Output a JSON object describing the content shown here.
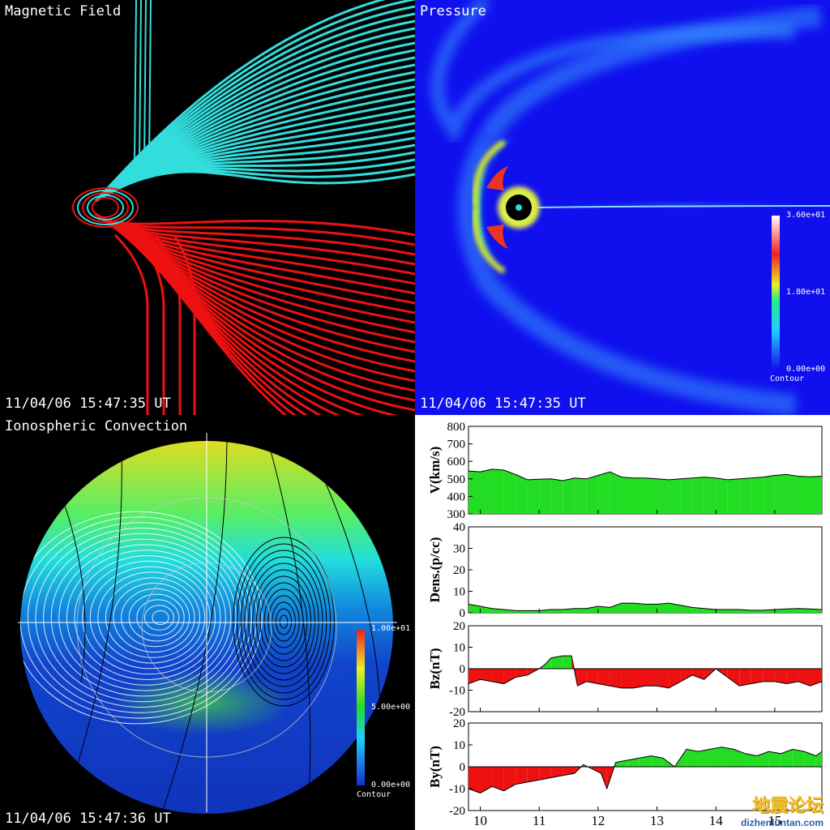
{
  "panels": {
    "magnetic": {
      "title": "Magnetic Field",
      "timestamp": "11/04/06 15:47:35 UT"
    },
    "pressure": {
      "title": "Pressure",
      "timestamp": "11/04/06 15:47:35 UT",
      "colorbar": {
        "max": "3.60e+01",
        "mid": "1.80e+01",
        "min": "0.00e+00",
        "label": "Contour"
      }
    },
    "ionosphere": {
      "title": "Ionospheric Convection",
      "timestamp": "11/04/06 15:47:36 UT",
      "colorbar": {
        "max": "1.00e+01",
        "mid": "5.00e+00",
        "min": "0.00e+00",
        "label": "Contour"
      }
    }
  },
  "watermark": {
    "cn": "地震论坛",
    "url": "dizhenluntan.com"
  },
  "colors": {
    "positive": "#22dd22",
    "negative": "#ee1111",
    "cyan": "#33dddd",
    "red": "#ee1111"
  },
  "chart_data": [
    {
      "type": "area",
      "ylabel": "V(km/s)",
      "ylim": [
        300,
        800
      ],
      "yticks": [
        "800",
        "700",
        "600",
        "500",
        "400",
        "300"
      ],
      "x": [
        9.8,
        10.0,
        10.2,
        10.4,
        10.6,
        10.8,
        11.0,
        11.2,
        11.4,
        11.6,
        11.8,
        12.0,
        12.2,
        12.4,
        12.6,
        12.8,
        13.0,
        13.2,
        13.4,
        13.6,
        13.8,
        14.0,
        14.2,
        14.4,
        14.6,
        14.8,
        15.0,
        15.2,
        15.4,
        15.6,
        15.8
      ],
      "values": [
        545,
        540,
        555,
        550,
        525,
        495,
        498,
        500,
        490,
        505,
        500,
        520,
        540,
        510,
        505,
        505,
        500,
        495,
        500,
        505,
        510,
        505,
        495,
        500,
        505,
        510,
        520,
        525,
        515,
        512,
        515
      ]
    },
    {
      "type": "area",
      "ylabel": "Dens.(p/cc)",
      "ylim": [
        0,
        40
      ],
      "yticks": [
        "40",
        "30",
        "20",
        "10",
        "0"
      ],
      "x": [
        9.8,
        10.0,
        10.2,
        10.4,
        10.6,
        10.8,
        11.0,
        11.2,
        11.4,
        11.6,
        11.8,
        12.0,
        12.2,
        12.4,
        12.6,
        12.8,
        13.0,
        13.2,
        13.4,
        13.6,
        13.8,
        14.0,
        14.2,
        14.4,
        14.6,
        14.8,
        15.0,
        15.2,
        15.4,
        15.6,
        15.8
      ],
      "values": [
        4,
        3,
        2,
        1.5,
        1,
        1,
        1,
        1.5,
        1.5,
        2,
        2,
        3,
        2.5,
        4.5,
        4.5,
        4,
        4,
        4.5,
        3.5,
        2.5,
        2,
        1.5,
        1.5,
        1.5,
        1.2,
        1.2,
        1.5,
        1.8,
        2,
        1.8,
        1.5
      ]
    },
    {
      "type": "area",
      "ylabel": "Bz(nT)",
      "ylim": [
        -20,
        20
      ],
      "yticks": [
        "20",
        "10",
        "0",
        "-10",
        "-20"
      ],
      "x": [
        9.8,
        10.0,
        10.2,
        10.4,
        10.6,
        10.8,
        11.0,
        11.1,
        11.2,
        11.4,
        11.55,
        11.65,
        11.8,
        12.0,
        12.2,
        12.4,
        12.6,
        12.8,
        13.0,
        13.2,
        13.4,
        13.6,
        13.8,
        14.0,
        14.2,
        14.4,
        14.6,
        14.8,
        15.0,
        15.2,
        15.4,
        15.6,
        15.8
      ],
      "values": [
        -7,
        -5,
        -6,
        -7,
        -4,
        -3,
        0,
        2,
        5,
        6,
        6,
        -8,
        -6,
        -7,
        -8,
        -9,
        -9,
        -8,
        -8,
        -9,
        -6,
        -3,
        -5,
        0,
        -4,
        -8,
        -7,
        -6,
        -6,
        -7,
        -6,
        -8,
        -6
      ]
    },
    {
      "type": "area",
      "ylabel": "By(nT)",
      "ylim": [
        -20,
        20
      ],
      "yticks": [
        "20",
        "10",
        "0",
        "-10",
        "-20"
      ],
      "xticks": [
        "10",
        "11",
        "12",
        "13",
        "14",
        "15"
      ],
      "x": [
        9.8,
        10.0,
        10.2,
        10.4,
        10.6,
        10.8,
        11.0,
        11.2,
        11.4,
        11.6,
        11.75,
        11.9,
        12.05,
        12.15,
        12.3,
        12.5,
        12.7,
        12.9,
        13.1,
        13.3,
        13.5,
        13.7,
        13.9,
        14.1,
        14.3,
        14.5,
        14.7,
        14.9,
        15.1,
        15.3,
        15.5,
        15.7,
        15.8
      ],
      "values": [
        -10,
        -12,
        -9,
        -11,
        -8,
        -7,
        -6,
        -5,
        -4,
        -3,
        1,
        -1,
        -3,
        -10,
        2,
        3,
        4,
        5,
        4,
        0,
        8,
        7,
        8,
        9,
        8,
        6,
        5,
        7,
        6,
        8,
        7,
        5,
        7
      ]
    }
  ]
}
